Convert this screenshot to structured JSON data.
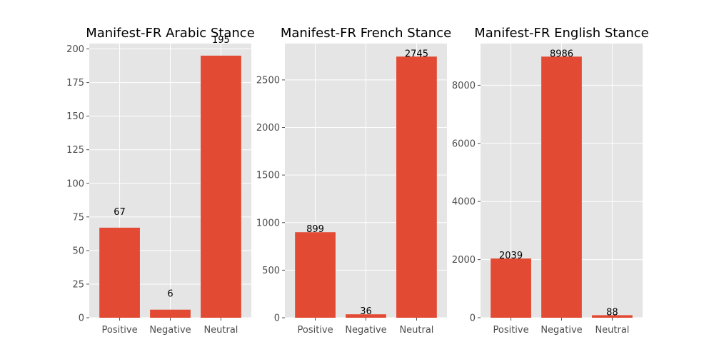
{
  "chart_data": [
    {
      "type": "bar",
      "title": "Manifest-FR Arabic Stance",
      "categories": [
        "Positive",
        "Negative",
        "Neutral"
      ],
      "values": [
        67,
        6,
        195
      ],
      "value_labels": [
        "67",
        "6",
        "195"
      ],
      "ylim": [
        0,
        204
      ],
      "yticks": [
        0,
        25,
        50,
        75,
        100,
        125,
        150,
        175,
        200
      ],
      "grid": true,
      "bar_color": "#E24A33"
    },
    {
      "type": "bar",
      "title": "Manifest-FR French Stance",
      "categories": [
        "Positive",
        "Negative",
        "Neutral"
      ],
      "values": [
        899,
        36,
        2745
      ],
      "value_labels": [
        "899",
        "36",
        "2745"
      ],
      "ylim": [
        0,
        2882
      ],
      "yticks": [
        0,
        500,
        1000,
        1500,
        2000,
        2500
      ],
      "grid": true,
      "bar_color": "#E24A33"
    },
    {
      "type": "bar",
      "title": "Manifest-FR English Stance",
      "categories": [
        "Positive",
        "Negative",
        "Neutral"
      ],
      "values": [
        2039,
        8986,
        88
      ],
      "value_labels": [
        "2039",
        "8986",
        "88"
      ],
      "ylim": [
        0,
        9435
      ],
      "yticks": [
        0,
        2000,
        4000,
        6000,
        8000
      ],
      "grid": true,
      "bar_color": "#E24A33"
    }
  ],
  "colors": {
    "background": "#FFFFFF",
    "plot_background": "#E5E5E5",
    "grid": "#FFFFFF",
    "bar": "#E24A33",
    "tick_text": "#4D4D4D",
    "text": "#000000"
  }
}
